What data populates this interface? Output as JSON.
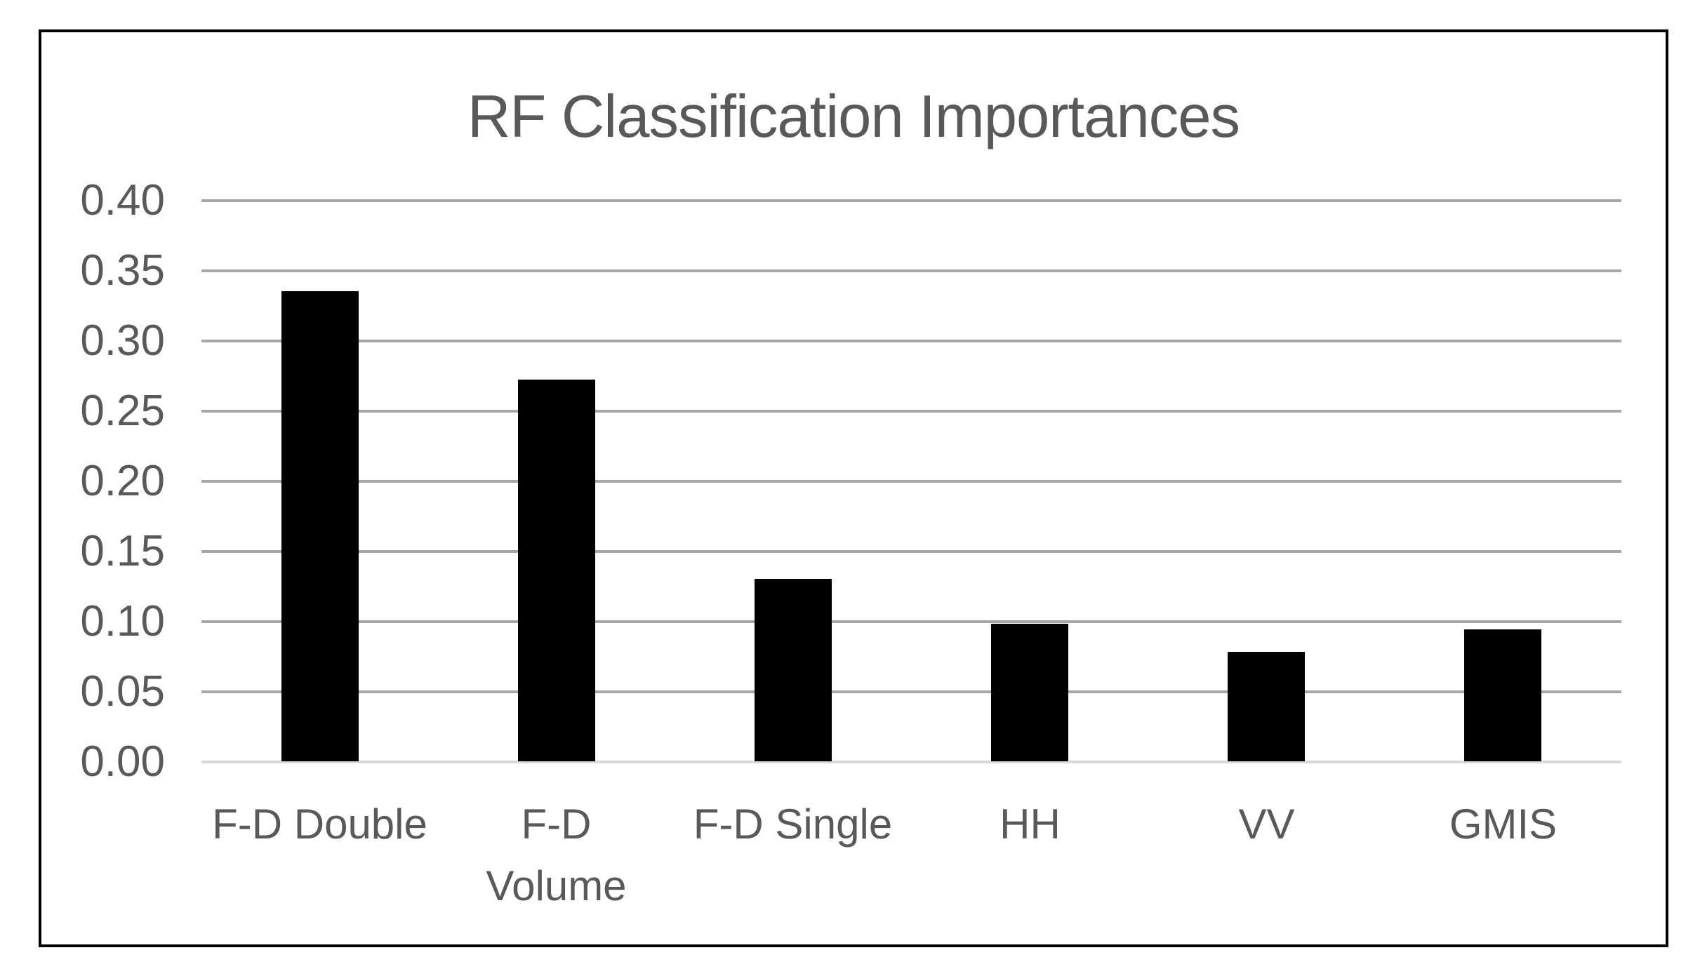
{
  "chart_data": {
    "type": "bar",
    "title": "RF Classification Importances",
    "categories": [
      "F-D Double",
      "F-D\nVolume",
      "F-D Single",
      "HH",
      "VV",
      "GMIS"
    ],
    "values": [
      0.335,
      0.272,
      0.13,
      0.098,
      0.078,
      0.094
    ],
    "xlabel": "",
    "ylabel": "",
    "ylim": [
      0.0,
      0.4
    ],
    "ytick_step": 0.05,
    "ytick_labels": [
      "0.00",
      "0.05",
      "0.10",
      "0.15",
      "0.20",
      "0.25",
      "0.30",
      "0.35",
      "0.40"
    ],
    "grid": true,
    "legend": false,
    "colors": {
      "bar": "#000000",
      "gridline": "#a6a6a6",
      "baseline": "#d9d9d9",
      "text": "#595959",
      "border": "#000000",
      "background": "#ffffff"
    }
  }
}
